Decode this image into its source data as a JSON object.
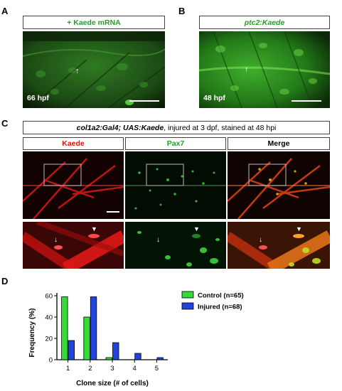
{
  "panels": {
    "A": {
      "letter": "A",
      "header": "+ Kaede mRNA",
      "timepoint": "66 hpf"
    },
    "B": {
      "letter": "B",
      "header": "ptc2:Kaede",
      "timepoint": "48 hpf"
    },
    "C": {
      "letter": "C",
      "title_italic": "col1a2:Gal4; UAS:Kaede",
      "title_rest": ", injured at 3 dpf, stained at 48 hpi",
      "columns": [
        "Kaede",
        "Pax7",
        "Merge"
      ]
    },
    "D": {
      "letter": "D"
    }
  },
  "colors": {
    "green": "#2a9a2a",
    "red": "#d11111",
    "control": "#33dd33",
    "injured": "#2244dd"
  },
  "chart_data": {
    "type": "bar",
    "categories": [
      "1",
      "2",
      "3",
      "4",
      "5"
    ],
    "series": [
      {
        "name": "Control (n=65)",
        "values": [
          59,
          40,
          2,
          0,
          0
        ]
      },
      {
        "name": "Injured (n=68)",
        "values": [
          18,
          59,
          16,
          6,
          2
        ]
      }
    ],
    "xlabel": "Clone size (# of cells)",
    "ylabel": "Frequency (%)",
    "ylim": [
      0,
      60
    ],
    "yticks": [
      "0",
      "20",
      "40",
      "60"
    ],
    "legend_position": "top-right",
    "grid": false
  }
}
